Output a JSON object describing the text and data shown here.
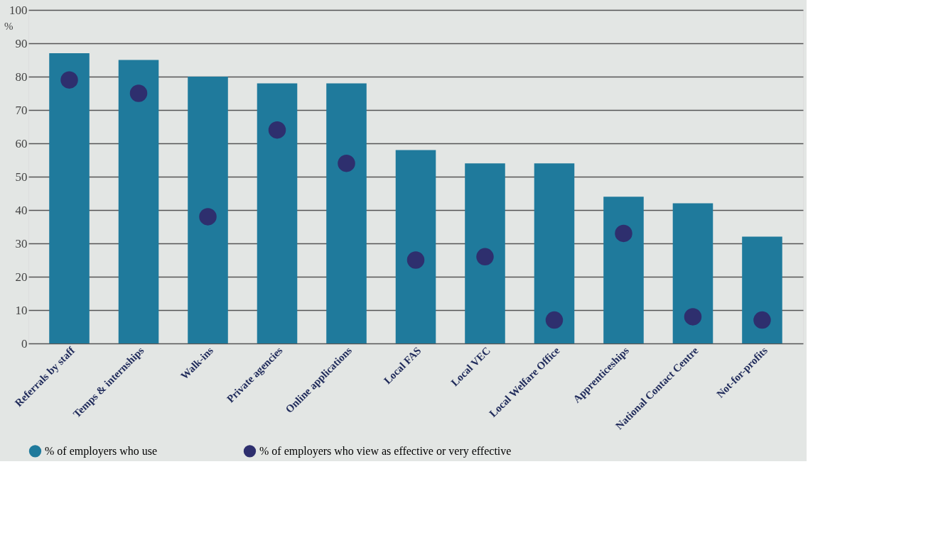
{
  "chart_data": {
    "type": "bar",
    "categories": [
      "Referrals by staff",
      "Temps & internships",
      "Walk-ins",
      "Private agencies",
      "Online applications",
      "Local FAS",
      "Local VEC",
      "Local Welfare Office",
      "Apprenticeships",
      "National Contact Centre",
      "Not-for-profits"
    ],
    "series": [
      {
        "name": "% of employers who use",
        "color": "#1f7a9c",
        "values": [
          87,
          85,
          80,
          78,
          78,
          58,
          54,
          54,
          44,
          42,
          32
        ]
      },
      {
        "name": "% of employers who view as effective or very effective",
        "type": "scatter",
        "color": "#2e2f6e",
        "values": [
          79,
          75,
          38,
          64,
          54,
          25,
          26,
          7,
          33,
          8,
          7
        ]
      }
    ],
    "ylabel": "%",
    "ylim": [
      0,
      100
    ],
    "yticks": [
      0,
      10,
      20,
      30,
      40,
      50,
      60,
      70,
      80,
      90,
      100
    ],
    "grid": "y",
    "legend": "bottom",
    "marker": "circle"
  }
}
